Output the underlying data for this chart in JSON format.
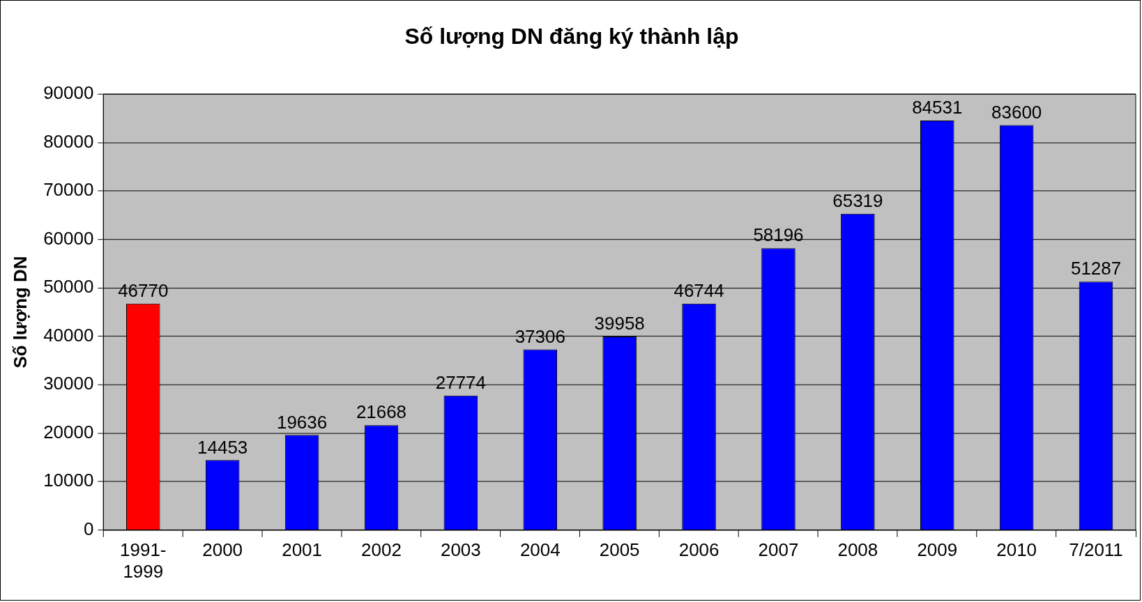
{
  "chart_data": {
    "type": "bar",
    "title": "Số lượng DN đăng ký thành lập",
    "ylabel": "Số lượng DN",
    "categories": [
      "1991-1999",
      "2000",
      "2001",
      "2002",
      "2003",
      "2004",
      "2005",
      "2006",
      "2007",
      "2008",
      "2009",
      "2010",
      "7/2011"
    ],
    "values": [
      46770,
      14453,
      19636,
      21668,
      27774,
      37306,
      39958,
      46744,
      58196,
      65319,
      84531,
      83600,
      51287
    ],
    "colors": [
      "#ff0000",
      "#0000ff",
      "#0000ff",
      "#0000ff",
      "#0000ff",
      "#0000ff",
      "#0000ff",
      "#0000ff",
      "#0000ff",
      "#0000ff",
      "#0000ff",
      "#0000ff",
      "#0000ff"
    ],
    "ylim": [
      0,
      90000
    ],
    "yticks": [
      0,
      10000,
      20000,
      30000,
      40000,
      50000,
      60000,
      70000,
      80000,
      90000
    ],
    "grid": "y",
    "data_labels": true,
    "legend": false
  }
}
